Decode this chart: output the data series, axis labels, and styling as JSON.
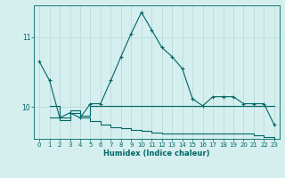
{
  "xlabel": "Humidex (Indice chaleur)",
  "background_color": "#d5eeee",
  "grid_color": "#b8d8d8",
  "line_color": "#006666",
  "xlim": [
    -0.5,
    23.5
  ],
  "ylim": [
    9.55,
    11.45
  ],
  "yticks": [
    10,
    11
  ],
  "xticks": [
    0,
    1,
    2,
    3,
    4,
    5,
    6,
    7,
    8,
    9,
    10,
    11,
    12,
    13,
    14,
    15,
    16,
    17,
    18,
    19,
    20,
    21,
    22,
    23
  ],
  "line1_x": [
    0,
    1,
    2,
    3,
    4,
    5,
    6,
    7,
    8,
    9,
    10,
    11,
    12,
    13,
    14,
    15,
    16,
    17,
    18,
    19,
    20,
    21,
    22,
    23
  ],
  "line1_y": [
    10.65,
    10.38,
    9.85,
    9.92,
    9.85,
    10.05,
    10.05,
    10.38,
    10.72,
    11.05,
    11.35,
    11.1,
    10.85,
    10.72,
    10.55,
    10.12,
    10.02,
    10.15,
    10.15,
    10.15,
    10.05,
    10.05,
    10.05,
    9.75
  ],
  "line2_x": [
    1,
    2,
    3,
    4,
    5,
    6,
    7,
    8,
    9,
    10,
    11,
    12,
    13,
    14,
    15,
    16,
    17,
    18,
    19,
    20,
    21,
    22,
    23
  ],
  "line2_y": [
    10.02,
    9.85,
    9.95,
    9.88,
    10.02,
    10.02,
    10.02,
    10.02,
    10.02,
    10.02,
    10.02,
    10.02,
    10.02,
    10.02,
    10.02,
    10.02,
    10.02,
    10.02,
    10.02,
    10.02,
    10.02,
    10.02,
    10.02
  ],
  "line3_x": [
    1,
    2,
    3,
    4,
    5,
    6,
    7,
    8,
    9,
    10,
    11,
    12,
    13,
    14,
    15,
    16,
    17,
    18,
    19,
    20,
    21,
    22,
    23
  ],
  "line3_y": [
    9.85,
    9.82,
    9.92,
    9.85,
    9.8,
    9.75,
    9.72,
    9.7,
    9.68,
    9.66,
    9.64,
    9.63,
    9.63,
    9.62,
    9.62,
    9.62,
    9.62,
    9.62,
    9.62,
    9.62,
    9.6,
    9.58,
    9.55
  ]
}
